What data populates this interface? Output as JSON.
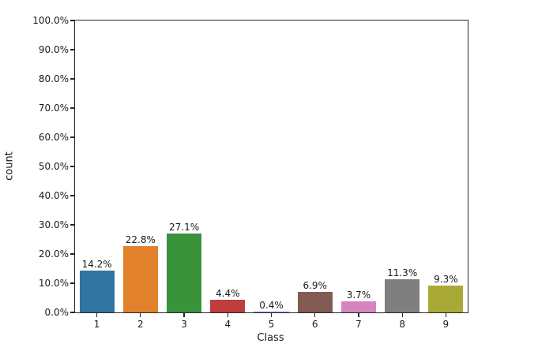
{
  "chart_data": {
    "type": "bar",
    "title": "",
    "xlabel": "Class",
    "ylabel": "count",
    "categories": [
      "1",
      "2",
      "3",
      "4",
      "5",
      "6",
      "7",
      "8",
      "9"
    ],
    "values": [
      14.2,
      22.8,
      27.1,
      4.4,
      0.4,
      6.9,
      3.7,
      11.3,
      9.3
    ],
    "bar_labels": [
      "14.2%",
      "22.8%",
      "27.1%",
      "4.4%",
      "0.4%",
      "6.9%",
      "3.7%",
      "11.3%",
      "9.3%"
    ],
    "colors": [
      "#3274a1",
      "#e1812c",
      "#3a923a",
      "#c03d3e",
      "#9372b2",
      "#845b53",
      "#d684bd",
      "#7f7f7f",
      "#a9aa35"
    ],
    "ylim": [
      0,
      100
    ],
    "ytick_labels": [
      "0.0%",
      "10.0%",
      "20.0%",
      "30.0%",
      "40.0%",
      "50.0%",
      "60.0%",
      "70.0%",
      "80.0%",
      "90.0%",
      "100.0%"
    ],
    "grid": "off",
    "legend": "none",
    "bar_width_fraction": 0.8,
    "spine_color": "#262626",
    "background": "#ffffff"
  }
}
